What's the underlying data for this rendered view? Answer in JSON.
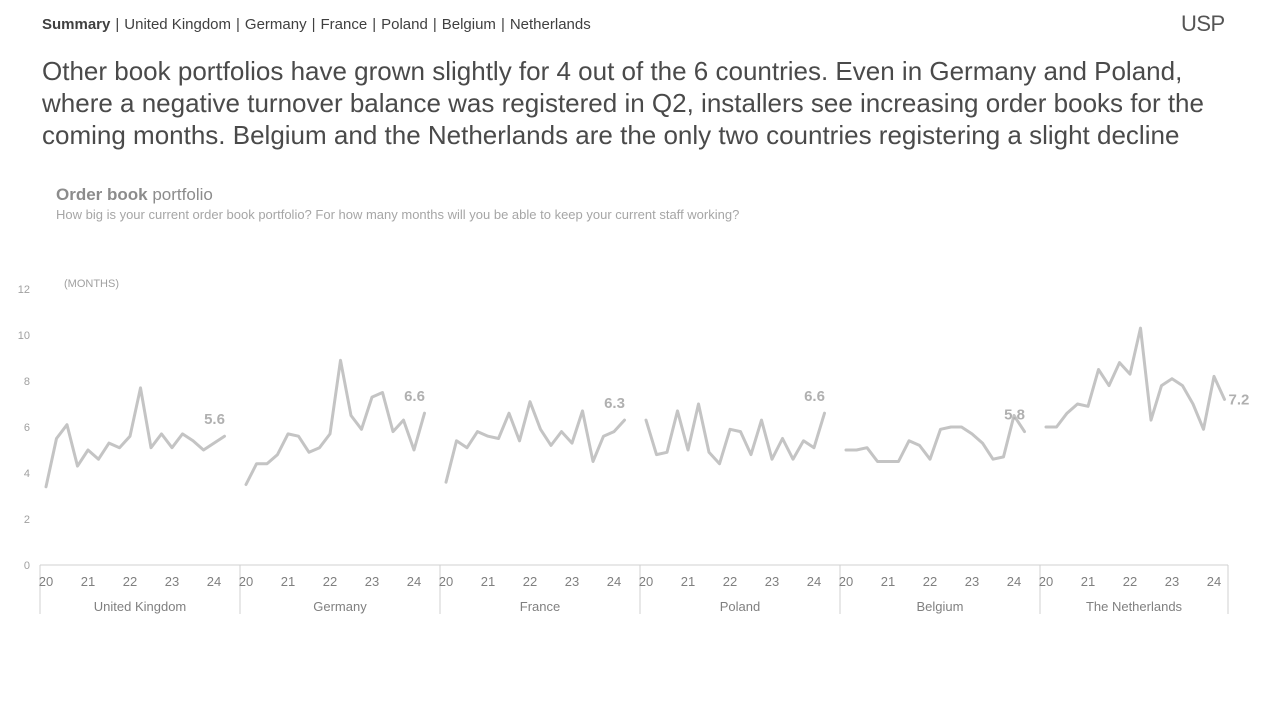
{
  "nav": {
    "items": [
      "Summary",
      "United Kingdom",
      "Germany",
      "France",
      "Poland",
      "Belgium",
      "Netherlands"
    ],
    "active": "Summary",
    "separator": "|"
  },
  "logo": {
    "text": "USP"
  },
  "headline": "Other book portfolios have grown slightly for 4 out of the 6 countries. Even in Germany and Poland, where a negative turnover balance was registered in Q2, installers see increasing order books for the coming months. Belgium and the Netherlands are the only two countries registering a slight decline",
  "chart": {
    "title_bold": "Order book",
    "title_rest": " portfolio",
    "subtitle": "How big is your current order book portfolio? For how many months will you be able to keep your current staff working?",
    "unit_label": "(MONTHS)"
  },
  "colors": {
    "line": "#c4c4c4",
    "end_label": "#b0b0b0",
    "axis": "#d0d0d0",
    "tick_text": "#808080",
    "y_tick_text": "#a0a0a0"
  },
  "chart_data": {
    "type": "line",
    "ylim": [
      0,
      12
    ],
    "yticks": [
      0,
      2,
      4,
      6,
      8,
      10,
      12
    ],
    "x_tick_labels": [
      "20",
      "21",
      "22",
      "23",
      "24"
    ],
    "x_start": 2020.0,
    "x_step": 0.25,
    "grid": false,
    "series": [
      {
        "name": "United Kingdom",
        "end_label": "5.6",
        "values": [
          3.4,
          5.5,
          6.1,
          4.3,
          5.0,
          4.6,
          5.3,
          5.1,
          5.6,
          7.7,
          5.1,
          5.7,
          5.1,
          5.7,
          5.4,
          5.0,
          5.3,
          5.6
        ]
      },
      {
        "name": "Germany",
        "end_label": "6.6",
        "values": [
          3.5,
          4.4,
          4.4,
          4.8,
          5.7,
          5.6,
          4.9,
          5.1,
          5.7,
          8.9,
          6.5,
          5.9,
          7.3,
          7.5,
          5.8,
          6.3,
          5.0,
          6.6
        ]
      },
      {
        "name": "France",
        "end_label": "6.3",
        "values": [
          3.6,
          5.4,
          5.1,
          5.8,
          5.6,
          5.5,
          6.6,
          5.4,
          7.1,
          5.9,
          5.2,
          5.8,
          5.3,
          6.7,
          4.5,
          5.6,
          5.8,
          6.3
        ]
      },
      {
        "name": "Poland",
        "end_label": "6.6",
        "values": [
          6.3,
          4.8,
          4.9,
          6.7,
          5.0,
          7.0,
          4.9,
          4.4,
          5.9,
          5.8,
          4.8,
          6.3,
          4.6,
          5.5,
          4.6,
          5.4,
          5.1,
          6.6
        ]
      },
      {
        "name": "Belgium",
        "end_label": "5.8",
        "values": [
          5.0,
          5.0,
          5.1,
          4.5,
          4.5,
          4.5,
          5.4,
          5.2,
          4.6,
          5.9,
          6.0,
          6.0,
          5.7,
          5.3,
          4.6,
          4.7,
          6.5,
          5.8
        ]
      },
      {
        "name": "The Netherlands",
        "end_label": "7.2",
        "values": [
          6.0,
          6.0,
          6.6,
          7.0,
          6.9,
          8.5,
          7.8,
          8.8,
          8.3,
          10.3,
          6.3,
          7.8,
          8.1,
          7.8,
          7.0,
          5.9,
          8.2,
          7.2
        ]
      }
    ]
  }
}
